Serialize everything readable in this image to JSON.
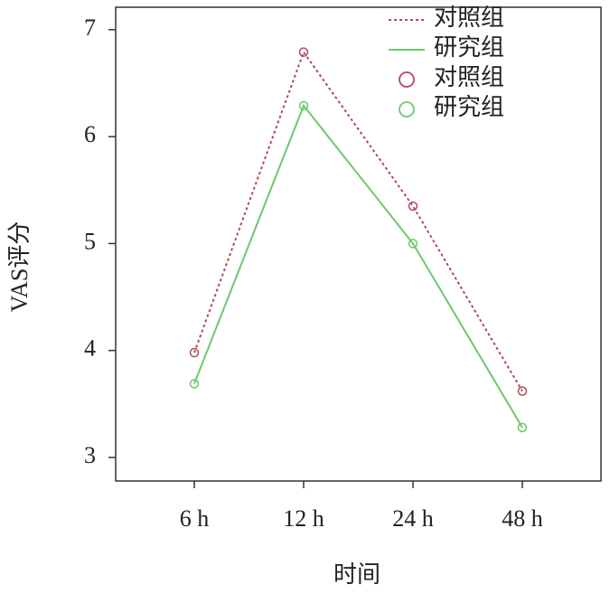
{
  "chart_data": {
    "type": "line",
    "x_label": "时间",
    "y_label": "VAS评分",
    "categories": [
      "6 h",
      "12 h",
      "24 h",
      "48 h"
    ],
    "series": [
      {
        "name": "对照组",
        "color": "#b5475a",
        "dash": "dotted",
        "values": [
          3.98,
          6.79,
          5.35,
          3.62
        ]
      },
      {
        "name": "研究组",
        "color": "#6cc86c",
        "dash": "solid",
        "values": [
          3.69,
          6.29,
          5.0,
          3.28
        ]
      }
    ],
    "ylim": [
      2.78,
      7.21
    ],
    "yticks": [
      3,
      4,
      5,
      6,
      7
    ],
    "grid": false,
    "legend": "upper right"
  }
}
